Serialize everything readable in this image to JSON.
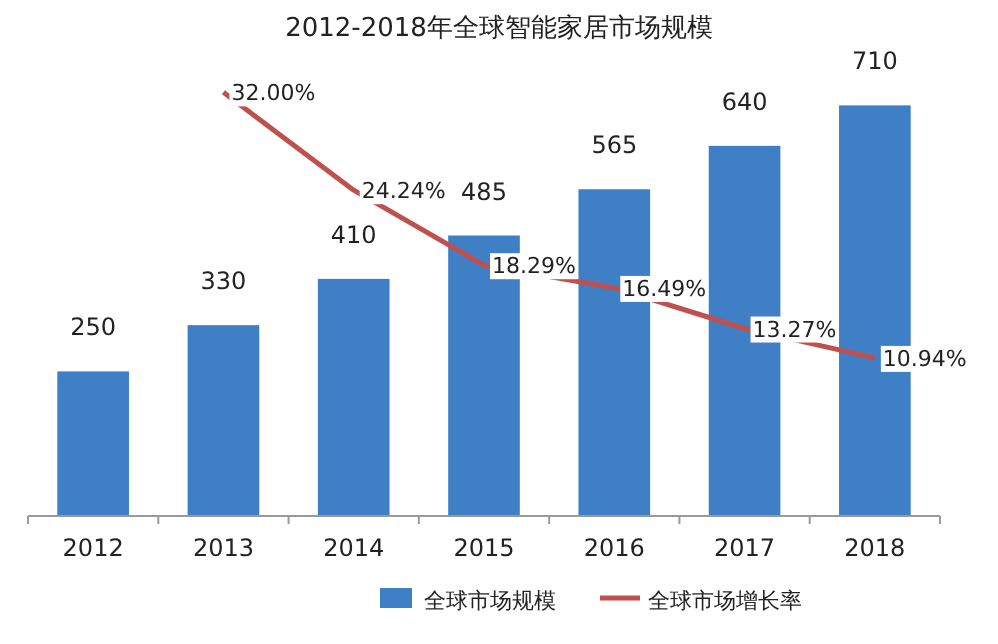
{
  "chart_data": {
    "type": "bar",
    "title": "2012-2018年全球智能家居市场规模",
    "categories": [
      "2012",
      "2013",
      "2014",
      "2015",
      "2016",
      "2017",
      "2018"
    ],
    "series": [
      {
        "name": "全球市场规模",
        "color": "#3f7fc6",
        "values": [
          250,
          330,
          410,
          485,
          565,
          640,
          710
        ],
        "value_labels": [
          "250",
          "330",
          "410",
          "485",
          "565",
          "640",
          "710"
        ]
      },
      {
        "name": "全球市场增长率",
        "type": "line",
        "axis": "y2",
        "color": "#c0504d",
        "values": [
          null,
          32.0,
          24.24,
          18.29,
          16.49,
          13.27,
          10.94
        ],
        "value_labels": [
          null,
          "32.00%",
          "24.24%",
          "18.29%",
          "16.49%",
          "13.27%",
          "10.94%"
        ]
      }
    ],
    "legend": "bottom"
  }
}
